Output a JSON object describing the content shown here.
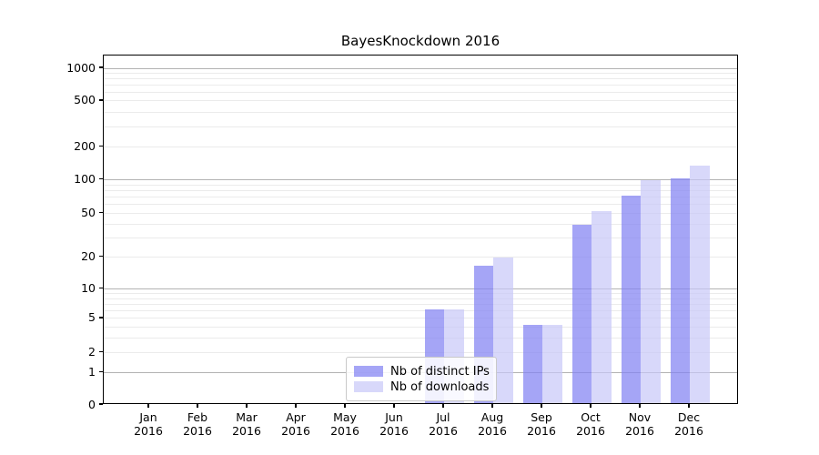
{
  "chart_data": {
    "type": "bar",
    "title": "BayesKnockdown 2016",
    "categories": [
      "Jan",
      "Feb",
      "Mar",
      "Apr",
      "May",
      "Jun",
      "Jul",
      "Aug",
      "Sep",
      "Oct",
      "Nov",
      "Dec"
    ],
    "year_label": "2016",
    "series": [
      {
        "name": "Nb of distinct IPs",
        "color": "#8282F3B8",
        "values": [
          0,
          0,
          0,
          0,
          0,
          0,
          6,
          16,
          4,
          38,
          70,
          100
        ]
      },
      {
        "name": "Nb of downloads",
        "color": "#C8C8F8B3",
        "values": [
          0,
          0,
          0,
          0,
          0,
          0,
          6,
          19,
          4,
          50,
          95,
          130
        ]
      }
    ],
    "yticks": [
      0,
      1,
      2,
      5,
      10,
      20,
      50,
      100,
      200,
      500,
      1000
    ],
    "y_axis": {
      "scale": "symlog-like",
      "ylim_top_approx": 1300,
      "major_gridlines": [
        1,
        10,
        100,
        1000
      ],
      "minor_gridlines": [
        2,
        3,
        4,
        5,
        6,
        7,
        8,
        9,
        20,
        30,
        40,
        50,
        60,
        70,
        80,
        90,
        200,
        300,
        400,
        500,
        600,
        700,
        800,
        900
      ],
      "anchors": [
        [
          0,
          0
        ],
        [
          1,
          0.093
        ],
        [
          2,
          0.1492
        ],
        [
          5,
          0.2474
        ],
        [
          10,
          0.3315
        ],
        [
          20,
          0.4226
        ],
        [
          50,
          0.5487
        ],
        [
          100,
          0.644
        ],
        [
          200,
          0.7378
        ],
        [
          500,
          0.8698
        ],
        [
          1000,
          0.9635
        ]
      ]
    },
    "legend_position": "bottom-center",
    "colors": {
      "major_grid": "#b3b3b3",
      "minor_grid": "#ebebeb",
      "spine": "#000000",
      "text": "#000000"
    }
  }
}
